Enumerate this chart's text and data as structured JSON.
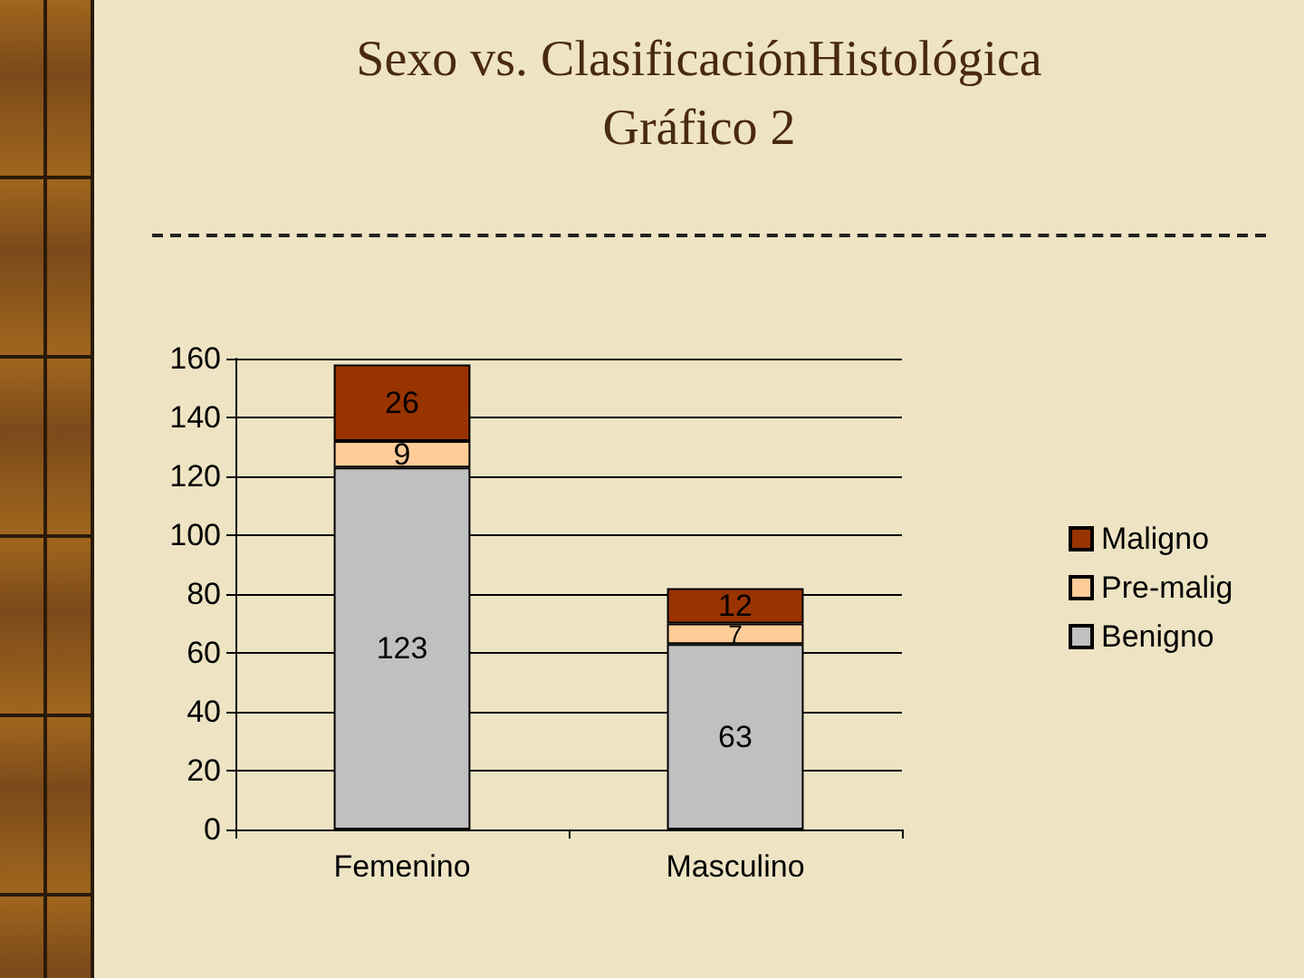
{
  "chart_data": {
    "type": "bar",
    "title": "Sexo vs. ClasificaciónHistológica",
    "subtitle": "Gráfico 2",
    "categories": [
      "Femenino",
      "Masculino"
    ],
    "series": [
      {
        "name": "Benigno",
        "color": "#c0c0c0",
        "values": [
          123,
          63
        ]
      },
      {
        "name": "Pre-malig",
        "color": "#ffcc99",
        "values": [
          9,
          7
        ]
      },
      {
        "name": "Maligno",
        "color": "#993300",
        "values": [
          26,
          12
        ]
      }
    ],
    "stacked": true,
    "ylim": [
      0,
      160
    ],
    "yticks": [
      0,
      20,
      40,
      60,
      80,
      100,
      120,
      140,
      160
    ],
    "grid": "y",
    "legend": "right",
    "data_labels": true
  }
}
